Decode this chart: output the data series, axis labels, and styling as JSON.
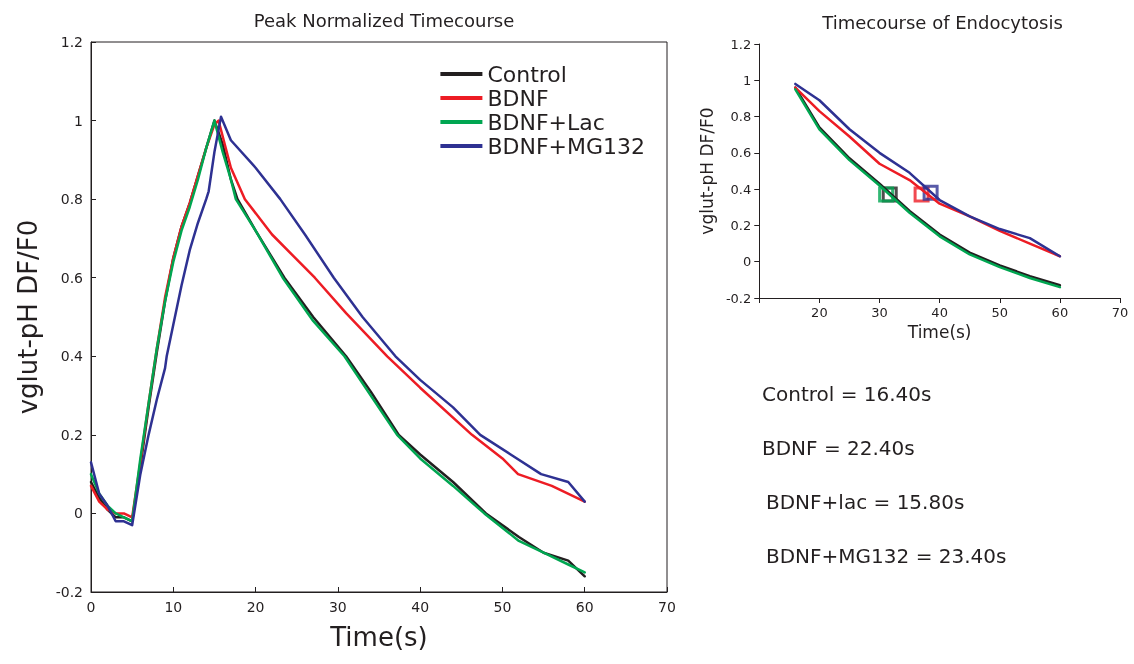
{
  "chart_data": [
    {
      "type": "line",
      "title": "Peak Normalized Timecourse",
      "xlabel": "Time(s)",
      "ylabel": "vglut-pH DF/F0",
      "xlim": [
        0,
        70
      ],
      "xticks": [
        0,
        10,
        20,
        30,
        40,
        50,
        60,
        70
      ],
      "ylim": [
        -0.2,
        1.2
      ],
      "yticks": [
        -0.2,
        0,
        0.2,
        0.4,
        0.6,
        0.8,
        1,
        1.2
      ],
      "grid": false,
      "legend": "top right",
      "marker": "none",
      "line_style": "solid",
      "series": [
        {
          "name": "Control",
          "color": "#231f20",
          "x": [
            0,
            1,
            2,
            3,
            4,
            5,
            6,
            7,
            8,
            9,
            10,
            11,
            12,
            13,
            14,
            15,
            16,
            17,
            17.8,
            20,
            23.5,
            27,
            31,
            34,
            37.4,
            40,
            44,
            48,
            52,
            55,
            58,
            60
          ],
          "values": [
            0.08,
            0.04,
            0.01,
            -0.01,
            -0.01,
            -0.02,
            0.12,
            0.27,
            0.41,
            0.54,
            0.65,
            0.73,
            0.79,
            0.86,
            0.93,
            1.0,
            0.94,
            0.85,
            0.8,
            0.72,
            0.6,
            0.5,
            0.4,
            0.31,
            0.2,
            0.15,
            0.08,
            0,
            -0.06,
            -0.1,
            -0.12,
            -0.16
          ]
        },
        {
          "name": "BDNF",
          "color": "#ed1c24",
          "x": [
            0,
            1,
            2,
            3,
            4,
            5,
            6,
            7,
            8,
            9,
            10,
            11,
            12,
            13,
            14,
            15,
            15.5,
            17,
            18.7,
            22,
            27.2,
            31,
            36,
            40,
            46.3,
            50,
            51.9,
            56,
            60
          ],
          "values": [
            0.07,
            0.03,
            0.01,
            0,
            0,
            -0.01,
            0.13,
            0.28,
            0.42,
            0.55,
            0.65,
            0.73,
            0.79,
            0.86,
            0.93,
            0.99,
            1.0,
            0.88,
            0.8,
            0.71,
            0.6,
            0.51,
            0.4,
            0.32,
            0.2,
            0.14,
            0.1,
            0.07,
            0.03
          ]
        },
        {
          "name": "BDNF+Lac",
          "color": "#00a651",
          "x": [
            0,
            1,
            2,
            3,
            4,
            5,
            6,
            7,
            8,
            9,
            10,
            11,
            12,
            13,
            14,
            15,
            16,
            17,
            17.6,
            20,
            23.3,
            27,
            30.8,
            34,
            37.2,
            40,
            44,
            47.8,
            52,
            55,
            58,
            60
          ],
          "values": [
            0.1,
            0.05,
            0.02,
            0,
            -0.01,
            -0.02,
            0.14,
            0.28,
            0.42,
            0.54,
            0.64,
            0.72,
            0.78,
            0.85,
            0.93,
            1.0,
            0.92,
            0.85,
            0.8,
            0.72,
            0.6,
            0.49,
            0.4,
            0.3,
            0.2,
            0.14,
            0.07,
            0,
            -0.07,
            -0.1,
            -0.13,
            -0.15
          ]
        },
        {
          "name": "BDNF+MG132",
          "color": "#2e3192",
          "x": [
            0,
            1,
            2,
            3,
            4,
            5,
            6,
            7,
            8,
            9,
            9.2,
            10,
            11,
            12,
            13,
            14,
            14.3,
            15,
            15.8,
            17,
            20,
            23,
            26,
            29.5,
            33,
            37,
            40,
            44,
            47.3,
            51,
            54.7,
            58,
            60
          ],
          "values": [
            0.13,
            0.05,
            0.02,
            -0.02,
            -0.02,
            -0.03,
            0.1,
            0.2,
            0.29,
            0.37,
            0.4,
            0.48,
            0.58,
            0.67,
            0.74,
            0.8,
            0.82,
            0.92,
            1.01,
            0.95,
            0.88,
            0.8,
            0.71,
            0.6,
            0.5,
            0.4,
            0.34,
            0.27,
            0.2,
            0.15,
            0.1,
            0.08,
            0.03
          ]
        }
      ]
    },
    {
      "type": "line",
      "title": "Timecourse of Endocytosis",
      "xlabel": "Time(s)",
      "ylabel": "vglut-pH DF/F0",
      "xlim": [
        10,
        70
      ],
      "xticks": [
        {
          "value": 10,
          "label": null
        },
        20,
        30,
        40,
        50,
        60,
        70
      ],
      "ylim": [
        -0.2,
        1.2
      ],
      "yticks": [
        -0.2,
        0,
        0.2,
        0.4,
        0.6,
        0.8,
        1,
        1.2
      ],
      "grid": false,
      "legend": false,
      "marker": "none",
      "line_style": "solid",
      "annotations": [
        "Control = 16.40s",
        "BDNF = 22.40s",
        "BDNF+lac = 15.80s",
        "BDNF+MG132 = 23.40s"
      ],
      "series": [
        {
          "color": "#231f20",
          "x": [
            16,
            20,
            25,
            30,
            35,
            40,
            45,
            50,
            55,
            60
          ],
          "values": [
            0.96,
            0.74,
            0.57,
            0.43,
            0.28,
            0.15,
            0.05,
            -0.02,
            -0.08,
            -0.13
          ]
        },
        {
          "color": "#ed1c24",
          "x": [
            16,
            20,
            25,
            30,
            35,
            40,
            45,
            50,
            55,
            60
          ],
          "values": [
            0.96,
            0.83,
            0.69,
            0.54,
            0.45,
            0.32,
            0.25,
            0.17,
            0.1,
            0.03
          ]
        },
        {
          "color": "#2e3192",
          "x": [
            16,
            20,
            25,
            30,
            35,
            40,
            45,
            50,
            55,
            60
          ],
          "values": [
            0.98,
            0.89,
            0.73,
            0.6,
            0.49,
            0.34,
            0.25,
            0.18,
            0.13,
            0.03
          ]
        },
        {
          "color": "#00a651",
          "x": [
            16,
            20,
            25,
            30,
            35,
            40,
            45,
            50,
            55,
            60
          ],
          "values": [
            0.95,
            0.73,
            0.56,
            0.42,
            0.27,
            0.14,
            0.04,
            -0.03,
            -0.09,
            -0.14
          ]
        },
        {
          "type": "scatter",
          "marker": "square",
          "color": "#231f20",
          "x": [
            31.7
          ],
          "values": [
            0.37
          ]
        },
        {
          "type": "scatter",
          "marker": "square",
          "color": "#00a651",
          "x": [
            31.1
          ],
          "values": [
            0.37
          ]
        },
        {
          "type": "scatter",
          "marker": "square",
          "color": "#ed1c24",
          "x": [
            37
          ],
          "values": [
            0.37
          ]
        },
        {
          "type": "scatter",
          "marker": "square",
          "color": "#2e3192",
          "x": [
            38.5
          ],
          "values": [
            0.38
          ]
        }
      ]
    }
  ]
}
